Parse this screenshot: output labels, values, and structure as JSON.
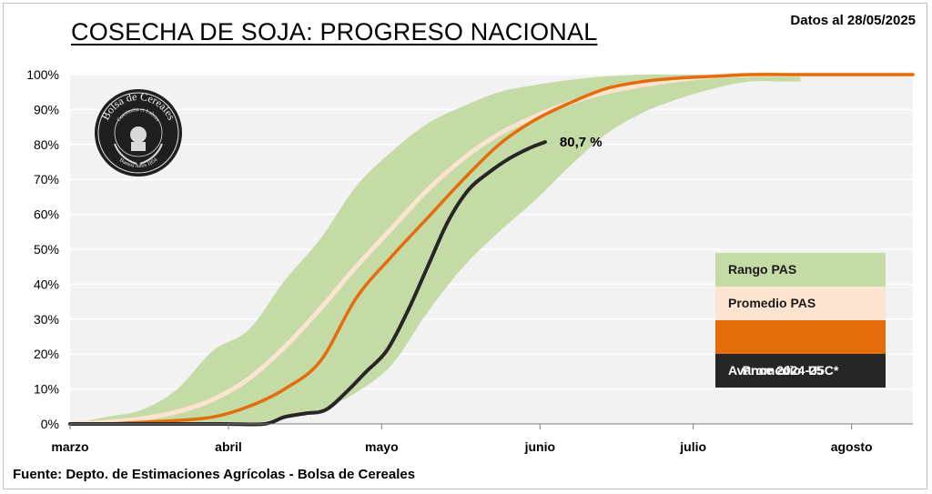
{
  "header": {
    "title": "COSECHA DE SOJA: PROGRESO NACIONAL",
    "date_note": "Datos al 28/05/2025"
  },
  "footer": {
    "source": "Fuente: Depto. de Estimaciones Agrícolas - Bolsa de Cereales"
  },
  "logo": {
    "text_top": "Bolsa de Cereales",
    "text_middle": "Constantia et Labore",
    "text_bottom": "Buenos Aires 1854"
  },
  "chart_data": {
    "type": "line",
    "title": "COSECHA DE SOJA: PROGRESO NACIONAL",
    "xlabel": "",
    "ylabel": "",
    "ylim": [
      0,
      100
    ],
    "yticks": [
      "0%",
      "10%",
      "20%",
      "30%",
      "40%",
      "50%",
      "60%",
      "70%",
      "80%",
      "90%",
      "100%"
    ],
    "x_unit": "days from 1 March",
    "xlim": [
      0,
      165
    ],
    "xticks": [
      {
        "label": "marzo",
        "value": 0
      },
      {
        "label": "abril",
        "value": 31
      },
      {
        "label": "mayo",
        "value": 61
      },
      {
        "label": "junio",
        "value": 92
      },
      {
        "label": "julio",
        "value": 122
      },
      {
        "label": "agosto",
        "value": 153
      }
    ],
    "grid": true,
    "legend_position": "bottom-right",
    "range_band": {
      "name": "Rango PAS",
      "color": "#c5dba6",
      "x": [
        0,
        7,
        14,
        21,
        28,
        35,
        42,
        49,
        56,
        63,
        70,
        77,
        84,
        91,
        98,
        105,
        112,
        119,
        126,
        133,
        140,
        147,
        154,
        165
      ],
      "upper": [
        0,
        2,
        4,
        10,
        21,
        27,
        41,
        53,
        68,
        78,
        86,
        91,
        95,
        97,
        98.5,
        99.5,
        100,
        100,
        100,
        100,
        100,
        100,
        100,
        100
      ],
      "lower": [
        0,
        0,
        0,
        0,
        0,
        0,
        2,
        4,
        9,
        17,
        32,
        45,
        55,
        64,
        74,
        83,
        89,
        93,
        96,
        98,
        98,
        98,
        98,
        98
      ],
      "end_x": 143
    },
    "series": [
      {
        "name": "Promedio PAS",
        "color": "#fde4d0",
        "x": [
          0,
          7,
          14,
          21,
          28,
          35,
          42,
          49,
          56,
          63,
          70,
          77,
          84,
          91,
          98,
          105,
          112,
          119,
          126,
          133,
          140,
          147,
          154,
          165
        ],
        "values": [
          0,
          0.5,
          1.5,
          3.5,
          7,
          13,
          22,
          33,
          45,
          56,
          67,
          76,
          83,
          88,
          92,
          95,
          97,
          98.5,
          99.5,
          100,
          100,
          100,
          100,
          100
        ]
      },
      {
        "name": "Promedio  U5C*",
        "color": "#e46c0a",
        "x": [
          0,
          7,
          14,
          21,
          28,
          35,
          42,
          49,
          56,
          63,
          70,
          77,
          84,
          91,
          98,
          105,
          112,
          119,
          126,
          133,
          140,
          147,
          154,
          165
        ],
        "values": [
          0,
          0,
          0.5,
          1,
          2,
          5,
          10,
          18,
          36,
          48,
          59,
          70,
          80,
          87,
          92,
          96,
          98,
          99,
          99.5,
          100,
          100,
          100,
          100,
          100
        ]
      },
      {
        "name": "Avance 2024-25",
        "color": "#262626",
        "x": [
          0,
          10,
          20,
          30,
          38,
          42,
          46,
          50,
          54,
          58,
          62,
          66,
          70,
          74,
          78,
          82,
          86,
          90,
          93
        ],
        "values": [
          0,
          0,
          0,
          0,
          0,
          2,
          3,
          4,
          9,
          15,
          21,
          32,
          45,
          58,
          67,
          72,
          76,
          79,
          80.7
        ]
      }
    ],
    "annotations": [
      {
        "text": "80,7 %",
        "x": 93,
        "y": 80.7
      }
    ]
  }
}
